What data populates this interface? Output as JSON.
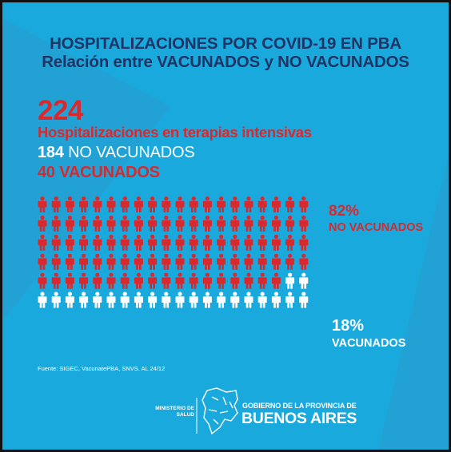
{
  "title": {
    "line1": "HOSPITALIZACIONES POR COVID-19 EN PBA",
    "line2": "Relación entre VACUNADOS y NO VACUNADOS"
  },
  "summary": {
    "total": "224",
    "subtitle": "Hospitalizaciones en terapias intensivas",
    "no_vacunados_number": "184",
    "no_vacunados_text": " NO VACUNADOS",
    "vacunados_line": "40 VACUNADOS"
  },
  "legend": {
    "no_vacunados_pct": "82%",
    "no_vacunados_label": "NO VACUNADOS",
    "vacunados_pct": "18%",
    "vacunados_label": "VACUNADOS"
  },
  "source": "Fuente: SIGEC, VacunatePBA, SNVS. AL 24/12",
  "footer": {
    "ministerio_line1": "MINISTERIO DE",
    "ministerio_line2": "SALUD",
    "gobierno_line1": "GOBIERNO DE LA PROVINCIA DE",
    "gobierno_line2": "BUENOS AIRES"
  },
  "colors": {
    "background": "#1aa9dd",
    "title": "#1f3566",
    "no_vacunados": "#d8292f",
    "vacunados": "#ffffff"
  },
  "chart_data": {
    "type": "pictograph",
    "rows": 6,
    "columns": 20,
    "categories": [
      "NO VACUNADOS",
      "VACUNADOS"
    ],
    "values": [
      82,
      18
    ],
    "unit": "%",
    "counts": [
      184,
      40
    ],
    "total": 224
  }
}
